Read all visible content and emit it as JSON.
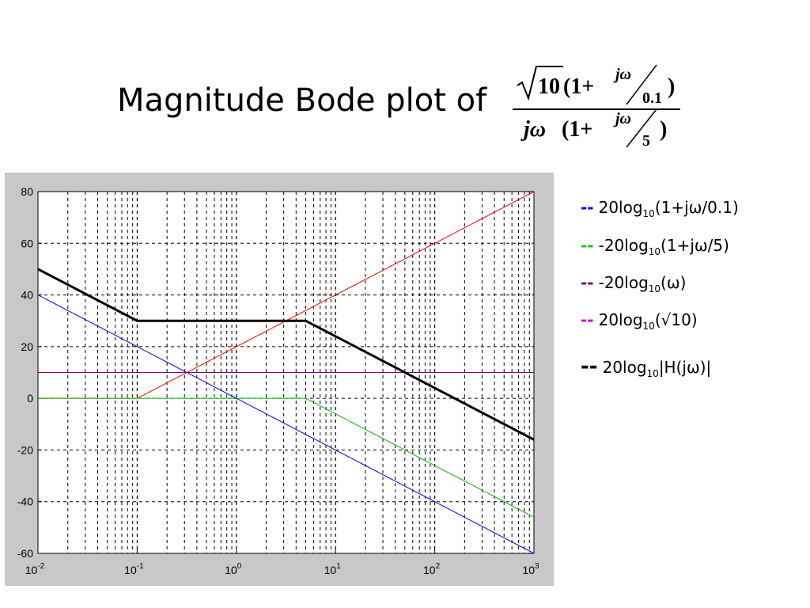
{
  "title": "Magnitude Bode plot of",
  "formula": {
    "num_root": "10",
    "num_paren": "(1+",
    "num_jw": "jω",
    "num_den": "0.1",
    "num_close": ")",
    "den_jw": "jω",
    "den_paren": "(1+",
    "den_jw2": "jω",
    "den_den": "5",
    "den_close": ")"
  },
  "legend": [
    {
      "dash": "--",
      "pre": "20log",
      "sub": "10",
      "post": "(1+jω/0.1)",
      "color": "#0000ff"
    },
    {
      "dash": "--",
      "pre": "-20log",
      "sub": "10",
      "post": "(1+jω/5)",
      "color": "#00cc00"
    },
    {
      "dash": "--",
      "pre": "-20log",
      "sub": "10",
      "post": "(ω)",
      "color": "#800080"
    },
    {
      "dash": "--",
      "pre": "20log",
      "sub": "10",
      "post": "(√10)",
      "color": "#cc00cc"
    },
    {
      "dash": "--",
      "pre": "20log",
      "sub": "10",
      "post": "|H(jω)|",
      "color": "#000000"
    }
  ],
  "chart_data": {
    "type": "line",
    "xscale": "log",
    "xlim": [
      0.01,
      1000
    ],
    "ylim": [
      -60,
      80
    ],
    "yticks": [
      "80",
      "60",
      "40",
      "20",
      "0",
      "-20",
      "-40",
      "-60"
    ],
    "xticks": [
      {
        "base": "10",
        "exp": "-2"
      },
      {
        "base": "10",
        "exp": "-1"
      },
      {
        "base": "10",
        "exp": "0"
      },
      {
        "base": "10",
        "exp": "1"
      },
      {
        "base": "10",
        "exp": "2"
      },
      {
        "base": "10",
        "exp": "3"
      }
    ],
    "grid": true,
    "series": [
      {
        "color": "#ff0000",
        "width": 1,
        "x": [
          0.01,
          0.1,
          1000
        ],
        "y": [
          0,
          0,
          80
        ]
      },
      {
        "color": "#00bb00",
        "width": 1,
        "x": [
          0.01,
          5,
          1000
        ],
        "y": [
          0,
          0,
          -46
        ]
      },
      {
        "color": "#0000ff",
        "width": 1,
        "x": [
          0.01,
          1000
        ],
        "y": [
          40,
          -60
        ]
      },
      {
        "color": "#800080",
        "width": 1,
        "x": [
          0.01,
          1000
        ],
        "y": [
          10,
          10
        ]
      },
      {
        "color": "#000000",
        "width": 3,
        "x": [
          0.01,
          0.1,
          5,
          1000
        ],
        "y": [
          50,
          30,
          30,
          -16
        ]
      }
    ]
  }
}
